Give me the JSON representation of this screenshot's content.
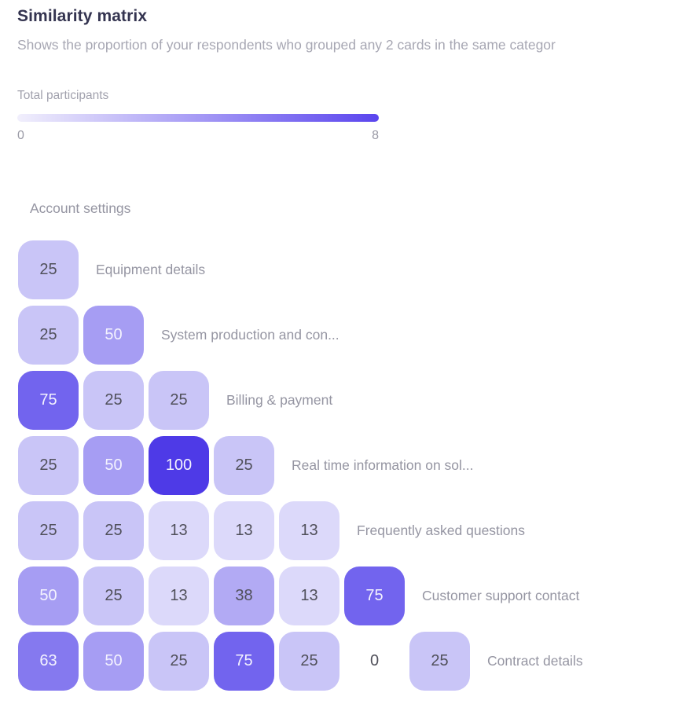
{
  "header": {
    "title": "Similarity matrix",
    "subtitle": "Shows the proportion of your respondents who grouped any 2 cards in the same categor"
  },
  "legend": {
    "label": "Total participants",
    "min": "0",
    "max": "8",
    "gradient_start": "#f1effc",
    "gradient_end": "#5a45ee"
  },
  "matrix": {
    "first_card": "Account settings",
    "rows": [
      {
        "label": "Equipment details",
        "cells": [
          25
        ]
      },
      {
        "label": "System production and con...",
        "cells": [
          25,
          50
        ]
      },
      {
        "label": "Billing & payment",
        "cells": [
          75,
          25,
          25
        ]
      },
      {
        "label": "Real time information on sol...",
        "cells": [
          25,
          50,
          100,
          25
        ]
      },
      {
        "label": "Frequently asked questions",
        "cells": [
          25,
          25,
          13,
          13,
          13
        ]
      },
      {
        "label": "Customer support contact",
        "cells": [
          50,
          25,
          13,
          38,
          13,
          75
        ]
      },
      {
        "label": "Contract details",
        "cells": [
          63,
          50,
          25,
          75,
          25,
          0,
          25
        ]
      }
    ]
  },
  "cell_colors": {
    "0": "transparent",
    "13": "#dcd9fa",
    "25": "#c9c5f7",
    "38": "#b2aaf4",
    "50": "#a69df3",
    "63": "#8579ef",
    "75": "#7264ee",
    "100": "#4e3ae7"
  },
  "chart_data": {
    "type": "heatmap",
    "title": "Similarity matrix",
    "legend_label": "Total participants",
    "legend_range": [
      0,
      8
    ],
    "cards": [
      "Account settings",
      "Equipment details",
      "System production and con...",
      "Billing & payment",
      "Real time information on sol...",
      "Frequently asked questions",
      "Customer support contact",
      "Contract details"
    ],
    "lower_triangle_values": [
      [
        25
      ],
      [
        25,
        50
      ],
      [
        75,
        25,
        25
      ],
      [
        25,
        50,
        100,
        25
      ],
      [
        25,
        25,
        13,
        13,
        13
      ],
      [
        50,
        25,
        13,
        38,
        13,
        75
      ],
      [
        63,
        50,
        25,
        75,
        25,
        0,
        25
      ]
    ]
  }
}
